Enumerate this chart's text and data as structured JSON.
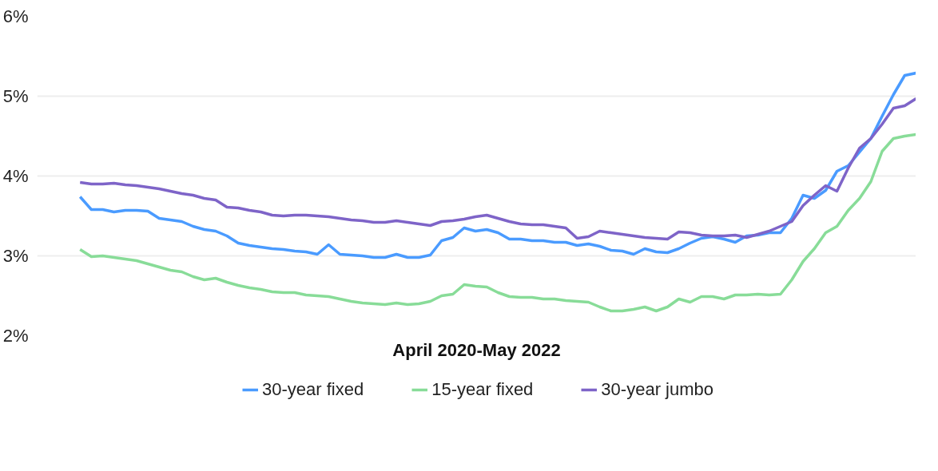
{
  "chart_data": {
    "type": "line",
    "xlabel": "April 2020-May 2022",
    "categories": [
      null,
      null,
      null,
      null,
      null,
      null,
      null,
      null,
      null,
      null,
      null,
      null,
      null,
      null,
      null,
      null,
      null,
      null,
      null,
      null,
      null,
      null,
      null,
      null,
      null,
      null,
      null,
      null,
      null,
      null,
      null,
      null,
      null,
      null,
      null,
      null,
      null,
      null,
      null,
      null,
      null,
      null,
      null,
      null,
      null,
      null,
      null,
      null,
      null,
      null,
      null,
      null,
      null,
      null,
      null,
      null,
      null,
      null,
      null,
      null,
      null,
      null,
      null,
      null,
      null,
      null,
      null,
      null,
      null,
      null,
      null,
      null,
      null,
      null,
      null
    ],
    "ylim": [
      2,
      6
    ],
    "yticks": [
      {
        "value": 2,
        "label": "2%"
      },
      {
        "value": 3,
        "label": "3%"
      },
      {
        "value": 4,
        "label": "4%"
      },
      {
        "value": 5,
        "label": "5%"
      },
      {
        "value": 6,
        "label": "6%"
      }
    ],
    "grid": "y",
    "legend": "bottom",
    "marker": "none",
    "line_style": "solid",
    "series": [
      {
        "name": "30-year fixed",
        "color": "#4a9bff",
        "values": [
          3.74,
          3.58,
          3.58,
          3.55,
          3.57,
          3.57,
          3.56,
          3.47,
          3.45,
          3.43,
          3.37,
          3.33,
          3.31,
          3.25,
          3.16,
          3.13,
          3.11,
          3.09,
          3.08,
          3.06,
          3.05,
          3.02,
          3.14,
          3.02,
          3.01,
          3.0,
          2.98,
          2.98,
          3.02,
          2.98,
          2.98,
          3.01,
          3.19,
          3.23,
          3.35,
          3.31,
          3.33,
          3.29,
          3.21,
          3.21,
          3.19,
          3.19,
          3.17,
          3.17,
          3.13,
          3.15,
          3.12,
          3.07,
          3.06,
          3.02,
          3.09,
          3.05,
          3.04,
          3.09,
          3.16,
          3.22,
          3.24,
          3.21,
          3.17,
          3.25,
          3.26,
          3.29,
          3.29,
          3.47,
          3.76,
          3.72,
          3.82,
          4.06,
          4.13,
          4.3,
          4.47,
          4.75,
          5.02,
          5.26,
          5.29
        ]
      },
      {
        "name": "15-year fixed",
        "color": "#88dc98",
        "values": [
          3.08,
          2.99,
          3.0,
          2.98,
          2.96,
          2.94,
          2.9,
          2.86,
          2.82,
          2.8,
          2.74,
          2.7,
          2.72,
          2.67,
          2.63,
          2.6,
          2.58,
          2.55,
          2.54,
          2.54,
          2.51,
          2.5,
          2.49,
          2.46,
          2.43,
          2.41,
          2.4,
          2.39,
          2.41,
          2.39,
          2.4,
          2.43,
          2.5,
          2.52,
          2.64,
          2.62,
          2.61,
          2.54,
          2.49,
          2.48,
          2.48,
          2.46,
          2.46,
          2.44,
          2.43,
          2.42,
          2.36,
          2.31,
          2.31,
          2.33,
          2.36,
          2.31,
          2.36,
          2.46,
          2.42,
          2.49,
          2.49,
          2.46,
          2.51,
          2.51,
          2.52,
          2.51,
          2.52,
          2.7,
          2.93,
          3.09,
          3.29,
          3.37,
          3.57,
          3.72,
          3.93,
          4.31,
          4.47,
          4.5,
          4.52
        ]
      },
      {
        "name": "30-year jumbo",
        "color": "#7e64c8",
        "values": [
          3.92,
          3.9,
          3.9,
          3.91,
          3.89,
          3.88,
          3.86,
          3.84,
          3.81,
          3.78,
          3.76,
          3.72,
          3.7,
          3.61,
          3.6,
          3.57,
          3.55,
          3.51,
          3.5,
          3.51,
          3.51,
          3.5,
          3.49,
          3.47,
          3.45,
          3.44,
          3.42,
          3.42,
          3.44,
          3.42,
          3.4,
          3.38,
          3.43,
          3.44,
          3.46,
          3.49,
          3.51,
          3.47,
          3.43,
          3.4,
          3.39,
          3.39,
          3.37,
          3.35,
          3.22,
          3.24,
          3.31,
          3.29,
          3.27,
          3.25,
          3.23,
          3.22,
          3.21,
          3.3,
          3.29,
          3.26,
          3.25,
          3.25,
          3.26,
          3.23,
          3.27,
          3.31,
          3.37,
          3.43,
          3.63,
          3.76,
          3.88,
          3.81,
          4.1,
          4.35,
          4.47,
          4.65,
          4.85,
          4.88,
          4.97
        ]
      }
    ]
  }
}
